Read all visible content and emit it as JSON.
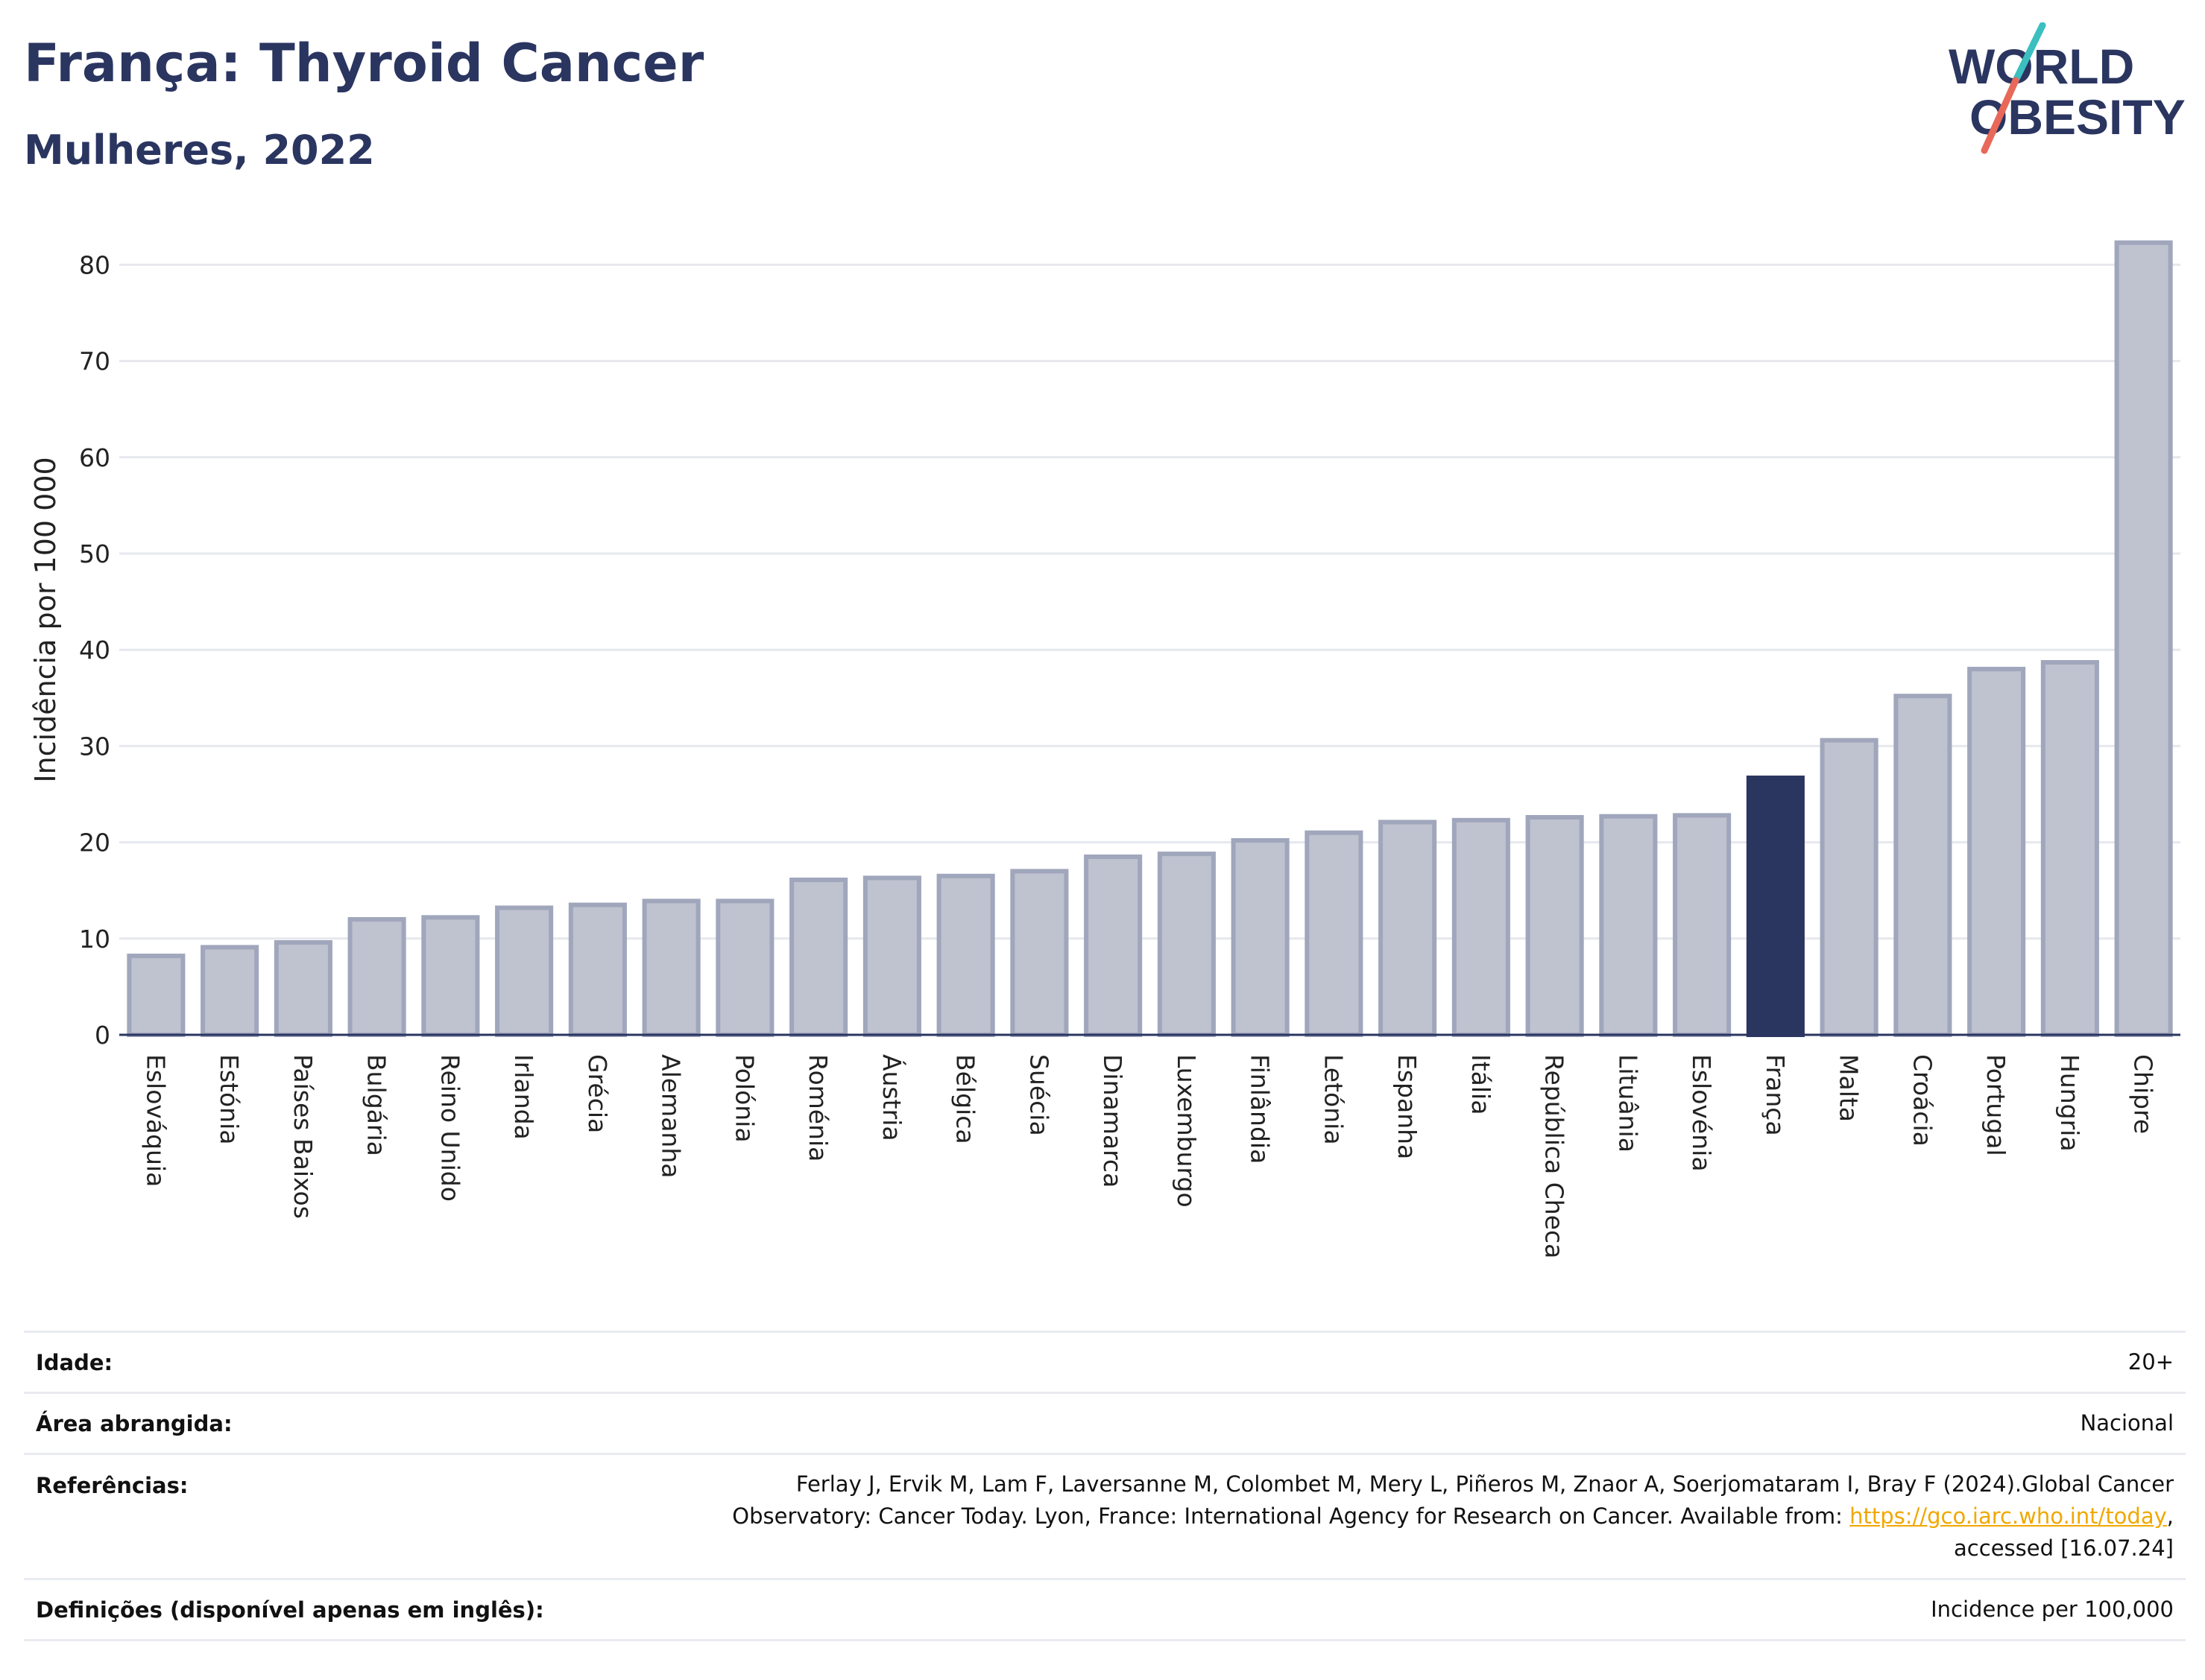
{
  "header": {
    "title": "França: Thyroid Cancer",
    "subtitle": "Mulheres, 2022"
  },
  "logo": {
    "line1": "WORLD",
    "line2": "OBESITY",
    "colors": {
      "text": "#2a3560",
      "slash_top": "#3bbfbf",
      "slash_bottom": "#e8685a"
    }
  },
  "chart_data": {
    "type": "bar",
    "title": "",
    "xlabel": "",
    "ylabel": "Incidência por 100 000",
    "ylim": [
      0,
      85
    ],
    "yticks": [
      0,
      10,
      20,
      30,
      40,
      50,
      60,
      70,
      80
    ],
    "grid": true,
    "highlight": "França",
    "colors": {
      "bar": "#bfc2cf",
      "bar_edge": "#a0a6bb",
      "highlight": "#2a3560",
      "grid": "#e6e8ee",
      "axis": "#2a3560"
    },
    "categories": [
      "Eslováquia",
      "Estónia",
      "Países Baixos",
      "Bulgária",
      "Reino Unido",
      "Irlanda",
      "Grécia",
      "Alemanha",
      "Polónia",
      "Roménia",
      "Áustria",
      "Bélgica",
      "Suécia",
      "Dinamarca",
      "Luxemburgo",
      "Finlândia",
      "Letónia",
      "Espanha",
      "Itália",
      "República Checa",
      "Lituânia",
      "Eslovénia",
      "França",
      "Malta",
      "Croácia",
      "Portugal",
      "Hungria",
      "Chipre"
    ],
    "values": [
      8.2,
      9.1,
      9.6,
      12.0,
      12.2,
      13.2,
      13.5,
      13.9,
      13.9,
      16.1,
      16.3,
      16.5,
      17.0,
      18.5,
      18.8,
      20.2,
      21.0,
      22.1,
      22.3,
      22.6,
      22.7,
      22.8,
      26.7,
      30.6,
      35.2,
      38.0,
      38.7,
      82.3
    ]
  },
  "info": {
    "age_label": "Idade:",
    "age_value": "20+",
    "area_label": "Área abrangida:",
    "area_value": "Nacional",
    "ref_label": "Referências:",
    "ref_text_1": "Ferlay J, Ervik M, Lam F, Laversanne M, Colombet M, Mery L, Piñeros M, Znaor A, Soerjomataram I, Bray F (2024).Global Cancer",
    "ref_text_2": "Observatory: Cancer Today. Lyon, France: International Agency for Research on Cancer. Available from: ",
    "ref_link": "https://gco.iarc.who.int/today",
    "ref_text_3": ",",
    "ref_text_4": "accessed [16.07.24]",
    "def_label": "Definições (disponível apenas em inglês):",
    "def_value": "Incidence per 100,000"
  }
}
